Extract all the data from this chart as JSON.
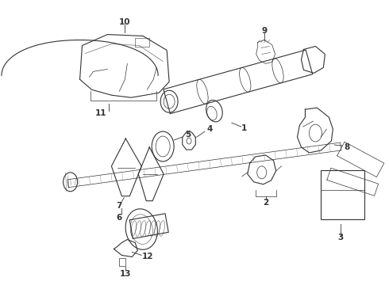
{
  "background_color": "#ffffff",
  "line_color": "#333333",
  "figsize": [
    4.9,
    3.6
  ],
  "dpi": 100,
  "label_fontsize": 7.5
}
